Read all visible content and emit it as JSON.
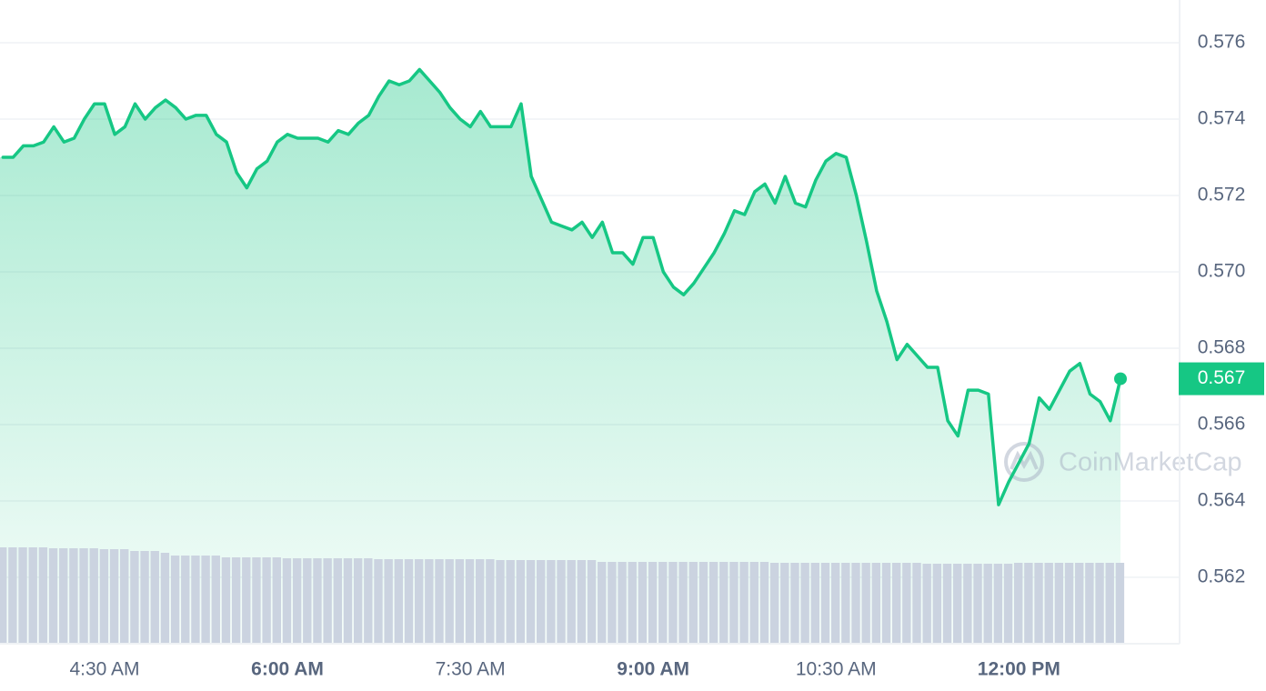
{
  "chart_data": {
    "type": "area",
    "categories": [
      null,
      null,
      null,
      null,
      null,
      null,
      null,
      null,
      null,
      null,
      "4:30 AM",
      null,
      null,
      null,
      null,
      null,
      null,
      null,
      null,
      null,
      null,
      null,
      null,
      null,
      null,
      null,
      null,
      null,
      "6:00 AM",
      null,
      null,
      null,
      null,
      null,
      null,
      null,
      null,
      null,
      null,
      null,
      null,
      null,
      null,
      null,
      null,
      null,
      "7:30 AM",
      null,
      null,
      null,
      null,
      null,
      null,
      null,
      null,
      null,
      null,
      null,
      null,
      null,
      null,
      null,
      null,
      null,
      "9:00 AM",
      null,
      null,
      null,
      null,
      null,
      null,
      null,
      null,
      null,
      null,
      null,
      null,
      null,
      null,
      null,
      null,
      null,
      "10:30 AM",
      null,
      null,
      null,
      null,
      null,
      null,
      null,
      null,
      null,
      null,
      null,
      null,
      null,
      null,
      null,
      null,
      null,
      "12:00 PM",
      null,
      null,
      null,
      null,
      null,
      null,
      null,
      null,
      null,
      null
    ],
    "values": [
      0.573,
      0.573,
      0.5733,
      0.5733,
      0.5734,
      0.5738,
      0.5734,
      0.5735,
      0.574,
      0.5744,
      0.5744,
      0.5736,
      0.5738,
      0.5744,
      0.574,
      0.5743,
      0.5745,
      0.5743,
      0.574,
      0.5741,
      0.5741,
      0.5736,
      0.5734,
      0.5726,
      0.5722,
      0.5727,
      0.5729,
      0.5734,
      0.5736,
      0.5735,
      0.5735,
      0.5735,
      0.5734,
      0.5737,
      0.5736,
      0.5739,
      0.5741,
      0.5746,
      0.575,
      0.5749,
      0.575,
      0.5753,
      0.575,
      0.5747,
      0.5743,
      0.574,
      0.5738,
      0.5742,
      0.5738,
      0.5738,
      0.5738,
      0.5744,
      0.5725,
      0.5719,
      0.5713,
      0.5712,
      0.5711,
      0.5713,
      0.5709,
      0.5713,
      0.5705,
      0.5705,
      0.5702,
      0.5709,
      0.5709,
      0.57,
      0.5696,
      0.5694,
      0.5697,
      0.5701,
      0.5705,
      0.571,
      0.5716,
      0.5715,
      0.5721,
      0.5723,
      0.5718,
      0.5725,
      0.5718,
      0.5717,
      0.5724,
      0.5729,
      0.5731,
      0.573,
      0.572,
      0.5708,
      0.5695,
      0.5687,
      0.5677,
      0.5681,
      0.5678,
      0.5675,
      0.5675,
      0.5661,
      0.5657,
      0.5669,
      0.5669,
      0.5668,
      0.5639,
      0.5645,
      0.565,
      0.5655,
      0.5667,
      0.5664,
      0.5669,
      0.5674,
      0.5676,
      0.5668,
      0.5666,
      0.5661,
      0.5672
    ],
    "color": "#16c784",
    "volume": {
      "color": "#cbd3e0",
      "values": [
        106,
        106,
        106,
        106,
        106,
        105,
        105,
        105,
        105,
        105,
        104,
        104,
        104,
        102,
        102,
        102,
        100,
        97,
        97,
        97,
        97,
        97,
        95,
        95,
        95,
        95,
        95,
        95,
        94,
        94,
        94,
        94,
        94,
        94,
        94,
        94,
        94,
        93,
        93,
        93,
        93,
        93,
        93,
        93,
        93,
        93,
        93,
        93,
        93,
        92,
        92,
        92,
        92,
        92,
        92,
        92,
        92,
        92,
        92,
        90,
        90,
        90,
        90,
        90,
        90,
        90,
        90,
        90,
        90,
        90,
        90,
        90,
        90,
        90,
        90,
        90,
        89,
        89,
        89,
        89,
        89,
        89,
        89,
        89,
        89,
        89,
        89,
        89,
        89,
        89,
        89,
        88,
        88,
        88,
        88,
        88,
        88,
        88,
        88,
        88,
        89,
        89,
        89,
        89,
        89,
        89,
        89,
        89,
        89,
        89,
        89
      ]
    },
    "ylim": [
      0.56026,
      0.57712
    ],
    "yticks": [
      0.562,
      0.564,
      0.566,
      0.568,
      {
        "value": 0.57,
        "label": "0.570"
      },
      0.572,
      0.574,
      0.576
    ],
    "grid": true,
    "current_price": {
      "value": 0.5672,
      "label": "0.567"
    },
    "watermark": "CoinMarketCap"
  }
}
